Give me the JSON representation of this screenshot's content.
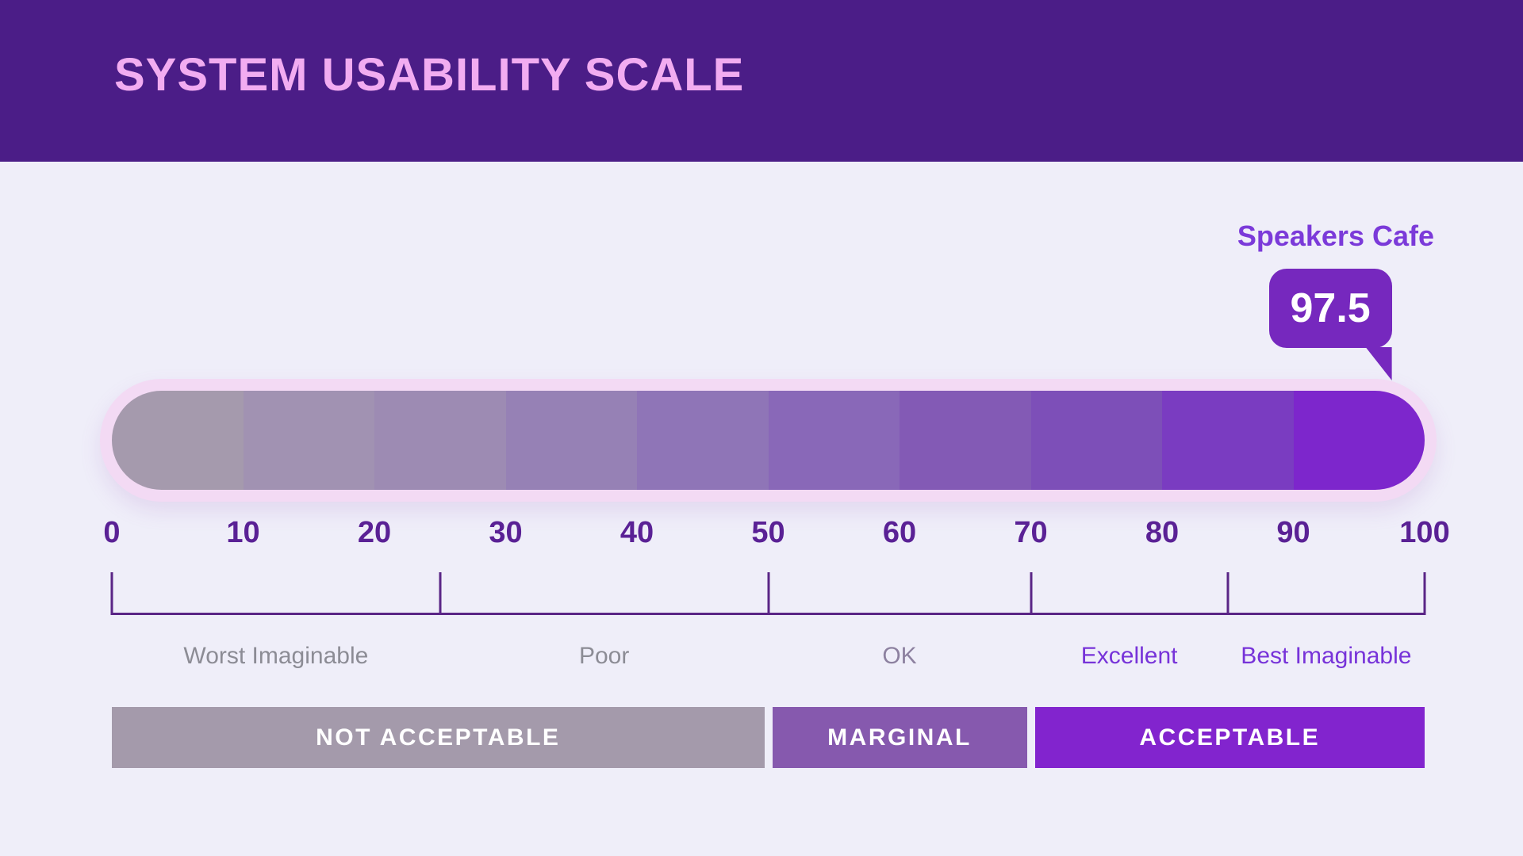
{
  "header": {
    "title": "SYSTEM USABILITY SCALE"
  },
  "colors": {
    "header_bg": "#4B1D87",
    "header_text": "#F2ACF1",
    "page_bg": "#EFEEF9",
    "ring": "#F3DAF4",
    "badge_bg": "#7628BE",
    "badge_text": "#FFFFFF",
    "product_label": "#7B3AD9",
    "tick_text": "#5A2195",
    "bracket_line": "#5A2586",
    "band_text": "#FFFFFF"
  },
  "chart_data": {
    "type": "scale",
    "title": "SYSTEM USABILITY SCALE",
    "entity": "Speakers Cafe",
    "score": 97.5,
    "axis": {
      "min": 0,
      "max": 100,
      "ticks": [
        0,
        10,
        20,
        30,
        40,
        50,
        60,
        70,
        80,
        90,
        100
      ]
    },
    "segments": [
      {
        "start": 0,
        "end": 10,
        "color": "#A59AAD"
      },
      {
        "start": 10,
        "end": 20,
        "color": "#A192B2"
      },
      {
        "start": 20,
        "end": 30,
        "color": "#9D8BB3"
      },
      {
        "start": 30,
        "end": 40,
        "color": "#9681B5"
      },
      {
        "start": 40,
        "end": 50,
        "color": "#8F75B7"
      },
      {
        "start": 50,
        "end": 60,
        "color": "#8968B8"
      },
      {
        "start": 60,
        "end": 70,
        "color": "#835AB5"
      },
      {
        "start": 70,
        "end": 80,
        "color": "#7D4FB8"
      },
      {
        "start": 80,
        "end": 90,
        "color": "#7A3CC1"
      },
      {
        "start": 90,
        "end": 100,
        "color": "#7D26CC"
      }
    ],
    "bracket_dividers": [
      0,
      25,
      50,
      70,
      85,
      100
    ],
    "adjective_sections": [
      {
        "label": "Worst Imaginable",
        "start": 0,
        "end": 25,
        "color": "#8C8C95"
      },
      {
        "label": "Poor",
        "start": 25,
        "end": 50,
        "color": "#8C8C95"
      },
      {
        "label": "OK",
        "start": 50,
        "end": 70,
        "color": "#8D81A0"
      },
      {
        "label": "Excellent",
        "start": 70,
        "end": 85,
        "color": "#7733D9"
      },
      {
        "label": "Best Imaginable",
        "start": 85,
        "end": 100,
        "color": "#7733D9"
      }
    ],
    "acceptability_bands": [
      {
        "label": "NOT ACCEPTABLE",
        "start": 0,
        "end": 50,
        "color": "#A49AAB"
      },
      {
        "label": "MARGINAL",
        "start": 50,
        "end": 70,
        "color": "#8659AE"
      },
      {
        "label": "ACCEPTABLE",
        "start": 70,
        "end": 100,
        "color": "#8224CE"
      }
    ]
  }
}
